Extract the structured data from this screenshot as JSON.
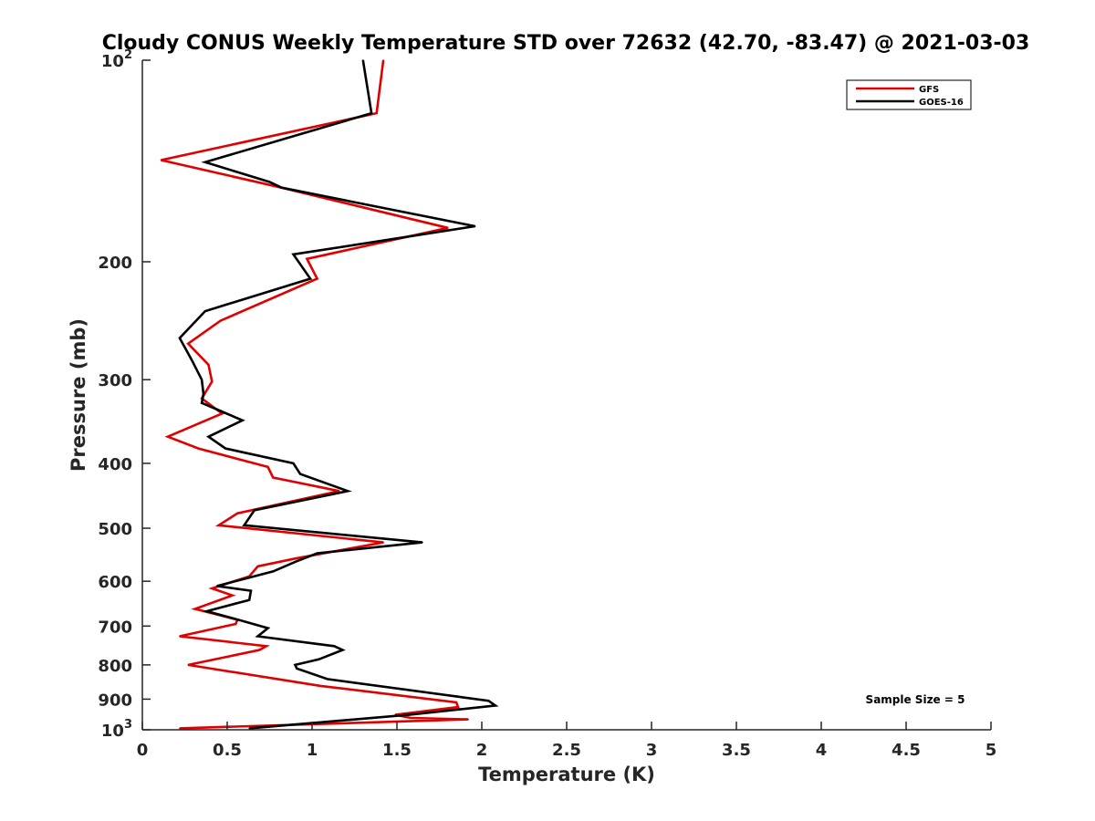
{
  "chart_data": {
    "type": "line",
    "title": "Cloudy CONUS Weekly Temperature STD over 72632 (42.70, -83.47) @ 2021-03-03",
    "xlabel": "Temperature (K)",
    "ylabel": "Pressure (mb)",
    "xlim": [
      0,
      5
    ],
    "ylim": [
      100,
      1000
    ],
    "yscale": "log",
    "y_reversed": true,
    "grid": false,
    "legend_position": "top-right",
    "x_ticks": [
      {
        "value": 0,
        "label": "0"
      },
      {
        "value": 0.5,
        "label": "0.5"
      },
      {
        "value": 1,
        "label": "1"
      },
      {
        "value": 1.5,
        "label": "1.5"
      },
      {
        "value": 2,
        "label": "2"
      },
      {
        "value": 2.5,
        "label": "2.5"
      },
      {
        "value": 3,
        "label": "3"
      },
      {
        "value": 3.5,
        "label": "3.5"
      },
      {
        "value": 4,
        "label": "4"
      },
      {
        "value": 4.5,
        "label": "4.5"
      },
      {
        "value": 5,
        "label": "5"
      }
    ],
    "y_ticks": [
      {
        "value": 100,
        "base": "10",
        "exp": "2"
      },
      {
        "value": 200,
        "label": "200"
      },
      {
        "value": 300,
        "label": "300"
      },
      {
        "value": 400,
        "label": "400"
      },
      {
        "value": 500,
        "label": "500"
      },
      {
        "value": 600,
        "label": "600"
      },
      {
        "value": 700,
        "label": "700"
      },
      {
        "value": 800,
        "label": "800"
      },
      {
        "value": 900,
        "label": "900"
      },
      {
        "value": 1000,
        "base": "10",
        "exp": "3"
      }
    ],
    "annotation": "Sample Size = 5",
    "series": [
      {
        "name": "GFS",
        "color": "#e00000",
        "x": [
          1.42,
          1.38,
          0.11,
          0.82,
          1.8,
          0.97,
          1.03,
          0.46,
          0.27,
          0.39,
          0.41,
          0.35,
          0.47,
          0.15,
          0.33,
          0.74,
          0.77,
          1.16,
          0.56,
          0.45,
          1.42,
          0.9,
          0.68,
          0.63,
          0.41,
          0.53,
          0.31,
          0.56,
          0.55,
          0.22,
          0.73,
          0.69,
          0.27,
          1.05,
          1.85,
          1.86,
          1.49,
          1.58,
          1.92,
          0.22
        ],
        "y": [
          100,
          120,
          141,
          155,
          178,
          198,
          212,
          245,
          265,
          285,
          302,
          320,
          337,
          365,
          380,
          405,
          420,
          440,
          475,
          495,
          525,
          555,
          570,
          590,
          615,
          630,
          660,
          685,
          695,
          725,
          750,
          760,
          800,
          860,
          910,
          925,
          950,
          960,
          965,
          995
        ]
      },
      {
        "name": "GOES-16",
        "color": "#000000",
        "x": [
          1.3,
          1.35,
          0.37,
          0.75,
          0.82,
          1.96,
          0.89,
          0.99,
          0.37,
          0.22,
          0.29,
          0.35,
          0.36,
          0.35,
          0.59,
          0.39,
          0.49,
          0.89,
          0.93,
          1.21,
          0.66,
          0.6,
          1.65,
          1.03,
          0.91,
          0.77,
          0.44,
          0.64,
          0.63,
          0.38,
          0.61,
          0.74,
          0.68,
          1.13,
          1.18,
          1.04,
          0.9,
          0.91,
          1.09,
          2.04,
          2.08,
          1.57,
          0.63
        ],
        "y": [
          100,
          120,
          142,
          152,
          155,
          177,
          195,
          212,
          237,
          260,
          280,
          300,
          315,
          325,
          345,
          365,
          380,
          400,
          415,
          440,
          470,
          495,
          525,
          545,
          560,
          580,
          610,
          620,
          640,
          665,
          690,
          705,
          725,
          750,
          760,
          785,
          800,
          810,
          840,
          905,
          920,
          950,
          995
        ]
      }
    ]
  }
}
